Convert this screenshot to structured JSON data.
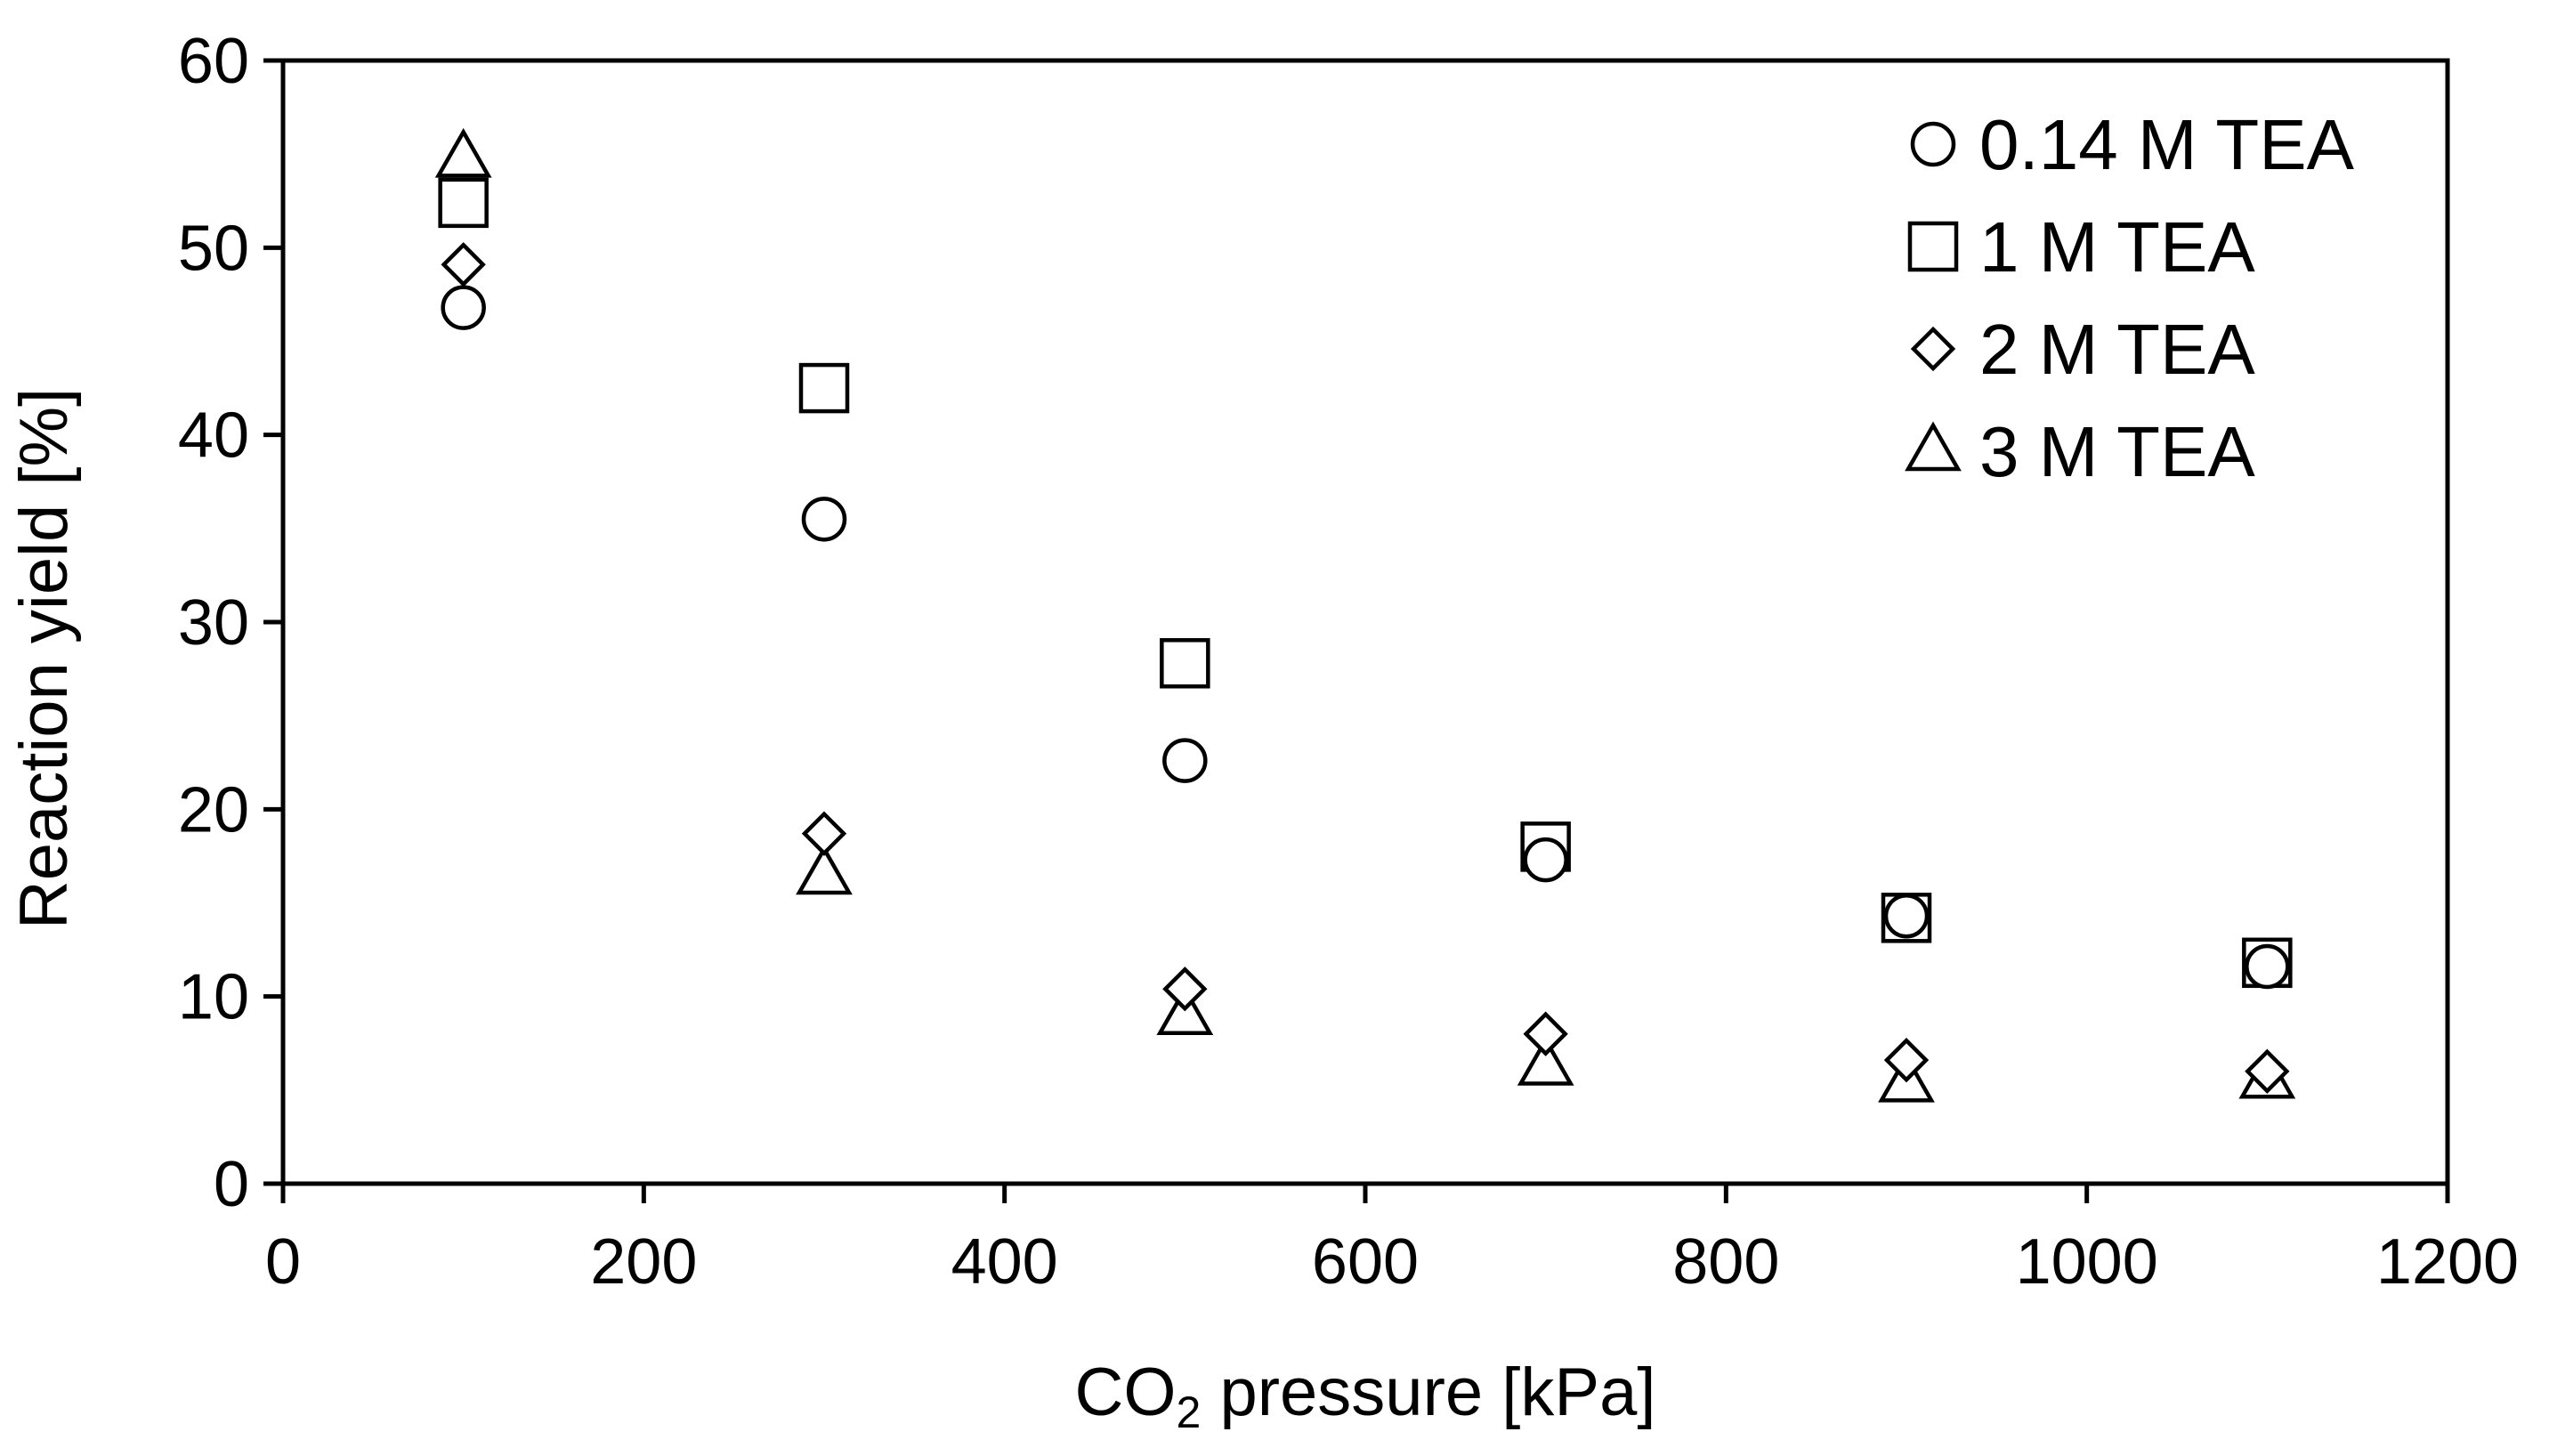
{
  "chart_data": {
    "type": "scatter",
    "xlabel": "CO₂ pressure [kPa]",
    "xlabel_parts": {
      "prefix": "CO",
      "subscript": "2",
      "suffix": " pressure [kPa]"
    },
    "ylabel": "Reaction yield [%]",
    "xlim": [
      0,
      1200
    ],
    "ylim": [
      0,
      60
    ],
    "xticks": [
      "0",
      "200",
      "400",
      "600",
      "800",
      "1000",
      "1200"
    ],
    "yticks": [
      "0",
      "10",
      "20",
      "30",
      "40",
      "50",
      "60"
    ],
    "grid": false,
    "legend_position": "top-right",
    "series": [
      {
        "name": "0.14 M TEA",
        "marker": "circle",
        "x": [
          100,
          300,
          500,
          700,
          900,
          1100
        ],
        "y": [
          46.8,
          35.5,
          22.6,
          17.3,
          14.3,
          11.6
        ]
      },
      {
        "name": "1 M TEA",
        "marker": "square",
        "x": [
          100,
          300,
          500,
          700,
          900,
          1100
        ],
        "y": [
          52.4,
          42.5,
          27.8,
          18.0,
          14.2,
          11.8
        ]
      },
      {
        "name": "2 M TEA",
        "marker": "diamond",
        "x": [
          100,
          300,
          500,
          700,
          900,
          1100
        ],
        "y": [
          49.1,
          18.7,
          10.4,
          8.0,
          6.6,
          6.0
        ]
      },
      {
        "name": "3 M TEA",
        "marker": "triangle",
        "x": [
          100,
          300,
          500,
          700,
          900,
          1100
        ],
        "y": [
          54.8,
          16.5,
          9.0,
          6.3,
          5.4,
          5.6
        ]
      }
    ]
  }
}
